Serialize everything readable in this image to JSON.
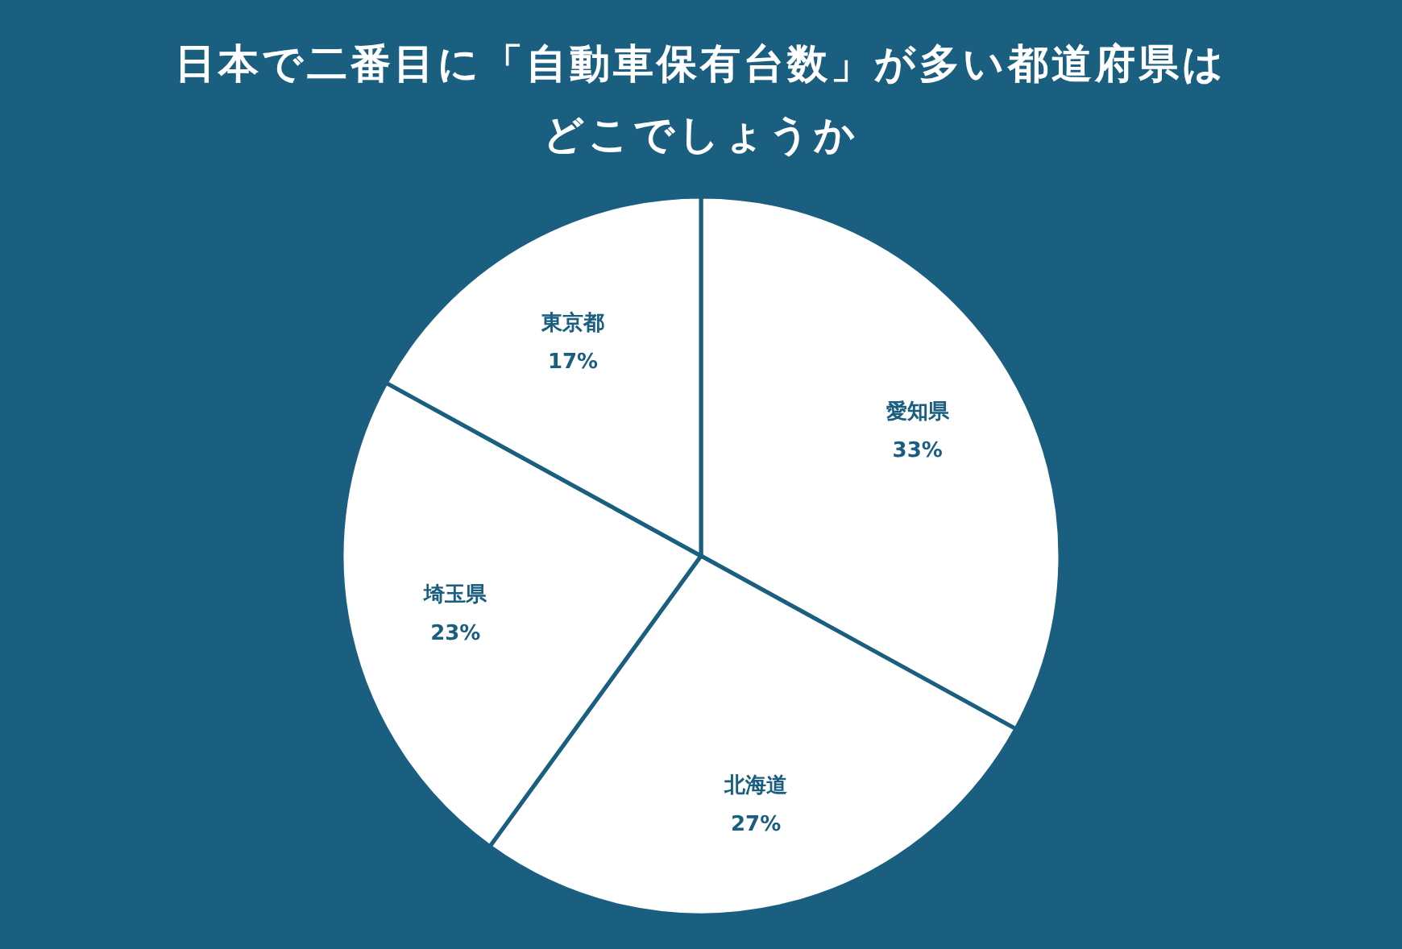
{
  "chart_data": {
    "type": "pie",
    "title": "日本で二番目に「自動車保有台数」が多い都道府県はどこでしょうか",
    "categories": [
      "愛知県",
      "北海道",
      "埼玉県",
      "東京都"
    ],
    "values": [
      33,
      27,
      23,
      17
    ],
    "colors": [
      "#ffffff",
      "#ffffff",
      "#ffffff",
      "#ffffff"
    ],
    "value_labels": [
      "33%",
      "27%",
      "23%",
      "17%"
    ]
  }
}
